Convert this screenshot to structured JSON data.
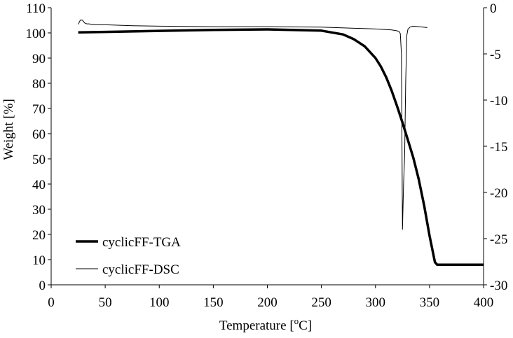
{
  "chart_data": {
    "type": "line",
    "xlabel": "Temperature [",
    "xlabel_sup": "o",
    "xlabel_unit": "C]",
    "ylabel": "Weight [%]",
    "xlim": [
      0,
      400
    ],
    "ylim": [
      0,
      110
    ],
    "y2lim": [
      -30,
      0
    ],
    "xticks": [
      0,
      50,
      100,
      150,
      200,
      250,
      300,
      350,
      400
    ],
    "yticks": [
      0,
      10,
      20,
      30,
      40,
      50,
      60,
      70,
      80,
      90,
      100,
      110
    ],
    "y2ticks": [
      0,
      -5,
      -10,
      -15,
      -20,
      -25,
      -30
    ],
    "grid": false,
    "legend_position": "bottom-left",
    "series": [
      {
        "name": "cyclicFF-TGA",
        "axis": "left",
        "color": "#000000",
        "line_width": "thick",
        "x": [
          25,
          50,
          100,
          150,
          200,
          250,
          270,
          280,
          290,
          300,
          305,
          310,
          315,
          320,
          325,
          330,
          335,
          340,
          345,
          350,
          355,
          357,
          360,
          380,
          400
        ],
        "y": [
          100.2,
          100.4,
          100.8,
          101.2,
          101.4,
          100.9,
          99.4,
          97.5,
          94.7,
          90.0,
          86.6,
          82.3,
          77.0,
          70.9,
          64.4,
          57.5,
          50.5,
          42.0,
          31.5,
          19.5,
          9.0,
          8.0,
          8.0,
          8.0,
          8.0
        ]
      },
      {
        "name": "cyclicFF-DSC",
        "axis": "right",
        "color": "#000000",
        "line_width": "thin",
        "x": [
          25,
          27,
          29,
          31,
          33,
          35,
          40,
          50,
          75,
          100,
          150,
          200,
          250,
          300,
          315,
          320,
          322,
          323,
          324,
          325,
          326,
          327,
          328,
          329,
          330,
          332,
          335,
          340,
          348
        ],
        "y": [
          -1.8,
          -1.35,
          -1.35,
          -1.65,
          -1.75,
          -1.75,
          -1.85,
          -1.85,
          -1.95,
          -2.0,
          -2.05,
          -2.05,
          -2.1,
          -2.3,
          -2.4,
          -2.5,
          -2.6,
          -2.8,
          -5.0,
          -24.0,
          -19.0,
          -16.0,
          -8.0,
          -3.0,
          -2.35,
          -2.1,
          -2.0,
          -2.05,
          -2.15
        ]
      }
    ]
  }
}
